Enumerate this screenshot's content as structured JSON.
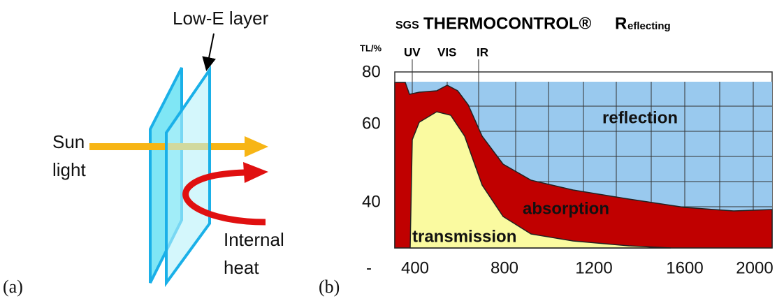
{
  "panel_a": {
    "label": "(a)",
    "layer_label": "Low-E layer",
    "sun_line1": "Sun",
    "sun_line2": "light",
    "heat_line1": "Internal",
    "heat_line2": "heat"
  },
  "panel_b": {
    "label": "(b)",
    "title_small": "SGS",
    "title_main": "THERMOCONTROL®",
    "title_initial": "R",
    "title_rest": "eflecting",
    "y_unit": "TL/%",
    "bands": [
      "UV",
      "VIS",
      "IR"
    ],
    "y_labels": [
      "80",
      "60",
      "40",
      "-"
    ],
    "x_labels": [
      "400",
      "800",
      "1200",
      "1600",
      "2000"
    ],
    "regions": [
      "reflection",
      "absorption",
      "transmission"
    ]
  }
}
